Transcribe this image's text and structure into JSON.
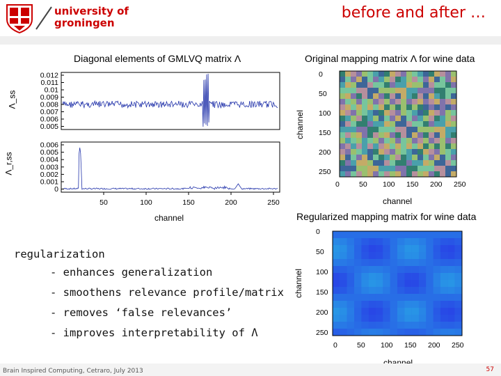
{
  "header": {
    "logo_line1": "university of",
    "logo_line2": "groningen",
    "slide_title": "before and after …"
  },
  "colors": {
    "accent": "#cc0000",
    "line": "#2233aa"
  },
  "fig_diag": {
    "title": "Diagonal elements of GMLVQ matrix Λ",
    "top_ylabel": "Λ_ss",
    "top_yticks": [
      "0.012",
      "0.011",
      "0.01",
      "0.009",
      "0.008",
      "0.007",
      "0.006",
      "0.005"
    ],
    "bottom_ylabel": "Λ_r,ss",
    "bottom_yticks": [
      "0.006",
      "0.005",
      "0.004",
      "0.003",
      "0.002",
      "0.001",
      "0"
    ],
    "xticks": [
      "50",
      "100",
      "150",
      "200",
      "250"
    ],
    "xlabel": "channel"
  },
  "fig_orig": {
    "title": "Original mapping matrix Λ for wine data",
    "yticks": [
      "0",
      "50",
      "100",
      "150",
      "200",
      "250"
    ],
    "xticks": [
      "0",
      "50",
      "100",
      "150",
      "200",
      "250"
    ],
    "xlabel": "channel",
    "ylabel": "channel"
  },
  "fig_reg": {
    "title": "Regularized mapping matrix for wine data",
    "yticks": [
      "0",
      "50",
      "100",
      "150",
      "200",
      "250"
    ],
    "xticks": [
      "0",
      "50",
      "100",
      "150",
      "200",
      "250"
    ],
    "xlabel": "channel",
    "ylabel": "channel"
  },
  "bullets": {
    "heading": "regularization",
    "items": [
      "- enhances generalization",
      "- smoothens relevance profile/matrix",
      "- removes ‘false relevances’",
      "- improves interpretability of  Λ"
    ]
  },
  "footer": {
    "text": "Brain Inspired Computing, Cetraro, July 2013",
    "page": "57"
  }
}
